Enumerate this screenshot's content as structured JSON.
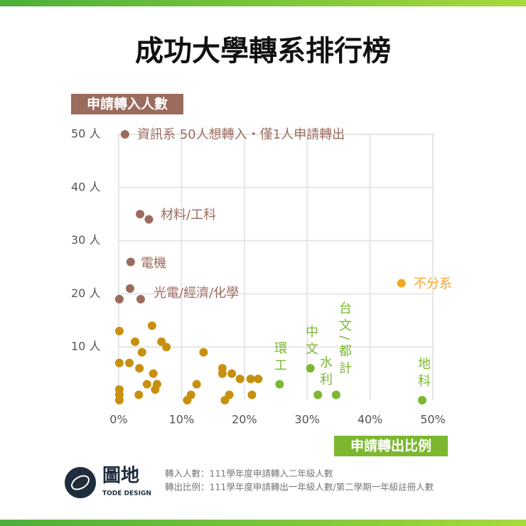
{
  "chart_data": {
    "type": "scatter",
    "title": "成功大學轉系排行榜",
    "y_label": "申請轉入人數",
    "x_label": "申請轉出比例",
    "xlim": [
      0,
      50
    ],
    "ylim": [
      0,
      50
    ],
    "xticks": [
      {
        "value": 0,
        "label": "0%"
      },
      {
        "value": 10,
        "label": "10%"
      },
      {
        "value": 20,
        "label": "20%"
      },
      {
        "value": 30,
        "label": "30%"
      },
      {
        "value": 40,
        "label": "40%"
      },
      {
        "value": 50,
        "label": "50%"
      }
    ],
    "yticks": [
      {
        "value": 10,
        "label": "10 人"
      },
      {
        "value": 20,
        "label": "20 人"
      },
      {
        "value": 30,
        "label": "30 人"
      },
      {
        "value": 40,
        "label": "40 人"
      },
      {
        "value": 50,
        "label": "50 人"
      }
    ],
    "grid": true,
    "series": [
      {
        "color": "#9b6b5e",
        "x": [
          1.0,
          3.4,
          4.8,
          1.9,
          1.8,
          0.1,
          3.5
        ],
        "values": [
          50,
          35,
          34,
          26,
          21,
          19,
          19
        ]
      },
      {
        "color": "#c8900f",
        "x": [
          0.1,
          5.3,
          2.6,
          6.8,
          7.6,
          3.7,
          13.5,
          0.1,
          1.7,
          3.3,
          5.5,
          16.5,
          16.5,
          18,
          19.3,
          21,
          22.2,
          4.5,
          6.1,
          12.4,
          5.8,
          0.1,
          0.1,
          0.1,
          3.2,
          11.5,
          10.9,
          16.9,
          17.6,
          21.2
        ],
        "values": [
          13,
          14,
          11,
          11,
          10,
          9,
          9,
          7,
          7,
          6,
          5,
          6,
          5,
          5,
          4,
          4,
          4,
          3,
          3,
          3,
          2,
          2,
          1,
          0,
          1,
          1,
          0,
          0,
          1,
          1
        ]
      },
      {
        "color": "#7cb82f",
        "x": [
          25.6,
          30.5,
          31.7,
          34.6,
          48.3
        ],
        "values": [
          3,
          6,
          1,
          1,
          0
        ]
      },
      {
        "color": "#f5a623",
        "x": [
          45.0
        ],
        "values": [
          22
        ]
      }
    ],
    "annotations": [
      "資訊系 50人想轉入・僅1人申請轉出",
      "材料/工科",
      "電機",
      "光電/經濟/化學",
      "不分系",
      "環工",
      "中文",
      "水利",
      "台文/都計",
      "地科"
    ]
  },
  "brand": {
    "name": "圖地",
    "sub": "TODE DESIGN"
  },
  "notes": [
    "轉入人數：111學年度申請轉入二年級人數",
    "轉出比例：111學年度申請轉出一年級人數/第二學期一年級註冊人數"
  ]
}
